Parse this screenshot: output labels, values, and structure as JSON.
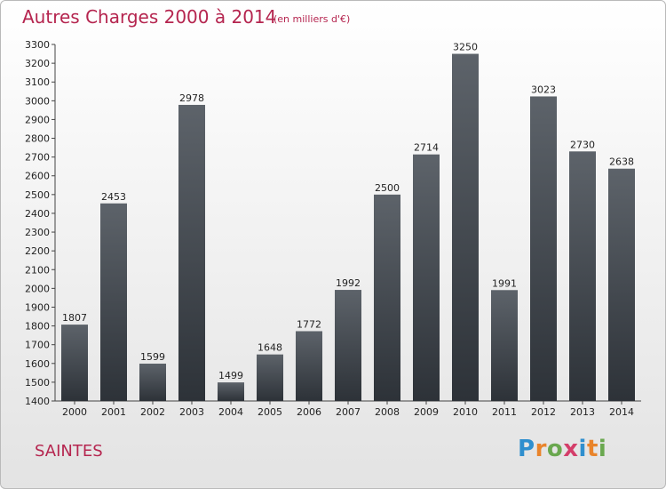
{
  "header": {
    "title": "Autres Charges 2000 à 2014",
    "subtitle": "(en milliers d'€)"
  },
  "footer": {
    "city": "SAINTES",
    "logo_letters": [
      "P",
      "r",
      "o",
      "x",
      "i",
      "t",
      "i"
    ],
    "logo_colors": [
      "#2f8fce",
      "#e9842b",
      "#6aa84f",
      "#d43e6a",
      "#2f8fce",
      "#e9842b",
      "#6aa84f"
    ]
  },
  "colors": {
    "bar_top": "#5d636a",
    "bar_bottom": "#2d3238",
    "accent": "#b5254f"
  },
  "chart_data": {
    "type": "bar",
    "title": "Autres Charges 2000 à 2014",
    "subtitle": "(en milliers d'€)",
    "categories": [
      "2000",
      "2001",
      "2002",
      "2003",
      "2004",
      "2005",
      "2006",
      "2007",
      "2008",
      "2009",
      "2010",
      "2011",
      "2012",
      "2013",
      "2014"
    ],
    "values": [
      1807,
      2453,
      1599,
      2978,
      1499,
      1648,
      1772,
      1992,
      2500,
      2714,
      3250,
      1991,
      3023,
      2730,
      2638
    ],
    "ylim": [
      1400,
      3300
    ],
    "yticks": [
      1400,
      1500,
      1600,
      1700,
      1800,
      1900,
      2000,
      2100,
      2200,
      2300,
      2400,
      2500,
      2600,
      2700,
      2800,
      2900,
      3000,
      3100,
      3200,
      3300
    ],
    "grid": false,
    "data_labels": true
  }
}
